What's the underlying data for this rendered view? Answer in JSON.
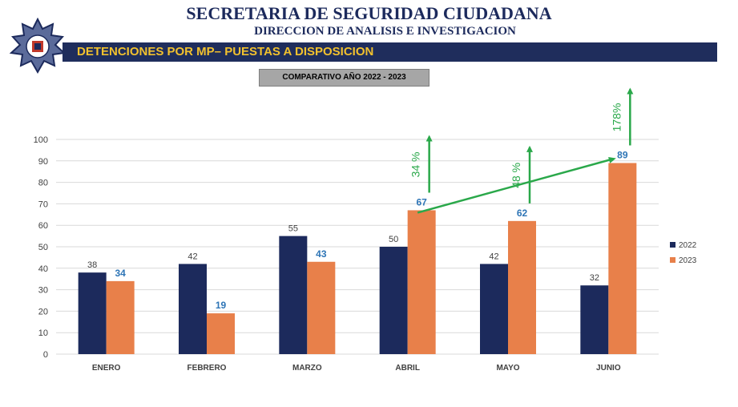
{
  "header": {
    "title": "SECRETARIA DE SEGURIDAD CIUDADANA",
    "subtitle": "DIRECCION DE ANALISIS E INVESTIGACION",
    "banner": "DETENCIONES POR MP– PUESTAS A DISPOSICION",
    "comparison_label": "COMPARATIVO AÑO 2022 - 2023"
  },
  "colors": {
    "navy": "#1f2d5c",
    "series_2022": "#1c2a5c",
    "series_2023": "#e8804a",
    "label_2023": "#2e75b6",
    "trend": "#2aa84a",
    "banner_text": "#f2c12e"
  },
  "chart_data": {
    "type": "bar",
    "title": "COMPARATIVO AÑO 2022 - 2023",
    "categories": [
      "ENERO",
      "FEBRERO",
      "MARZO",
      "ABRIL",
      "MAYO",
      "JUNIO"
    ],
    "series": [
      {
        "name": "2022",
        "values": [
          38,
          42,
          55,
          50,
          42,
          32
        ]
      },
      {
        "name": "2023",
        "values": [
          34,
          19,
          43,
          67,
          62,
          89
        ]
      }
    ],
    "ylim": [
      0,
      100
    ],
    "yticks": [
      0,
      10,
      20,
      30,
      40,
      50,
      60,
      70,
      80,
      90,
      100
    ],
    "grid": true,
    "legend": "right",
    "annotations": [
      {
        "category": "ABRIL",
        "text": "34 %"
      },
      {
        "category": "MAYO",
        "text": "48 %"
      },
      {
        "category": "JUNIO",
        "text": "178%"
      }
    ],
    "trend_line": {
      "from": "ABRIL",
      "to": "JUNIO",
      "series": "2023"
    }
  }
}
